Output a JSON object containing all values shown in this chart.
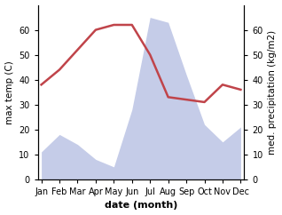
{
  "months": [
    "Jan",
    "Feb",
    "Mar",
    "Apr",
    "May",
    "Jun",
    "Jul",
    "Aug",
    "Sep",
    "Oct",
    "Nov",
    "Dec"
  ],
  "month_indices": [
    1,
    2,
    3,
    4,
    5,
    6,
    7,
    8,
    9,
    10,
    11,
    12
  ],
  "temperature": [
    38,
    44,
    52,
    60,
    62,
    62,
    50,
    33,
    32,
    31,
    38,
    36
  ],
  "precipitation": [
    11,
    18,
    14,
    8,
    5,
    28,
    65,
    63,
    42,
    22,
    15,
    21
  ],
  "temp_color": "#c0444a",
  "precip_fill_color": "#c5cce8",
  "ylim": [
    0,
    70
  ],
  "yticks": [
    0,
    10,
    20,
    30,
    40,
    50,
    60
  ],
  "xlabel": "date (month)",
  "ylabel_left": "max temp (C)",
  "ylabel_right": "med. precipitation (kg/m2)",
  "figsize": [
    3.18,
    2.42
  ],
  "dpi": 100
}
